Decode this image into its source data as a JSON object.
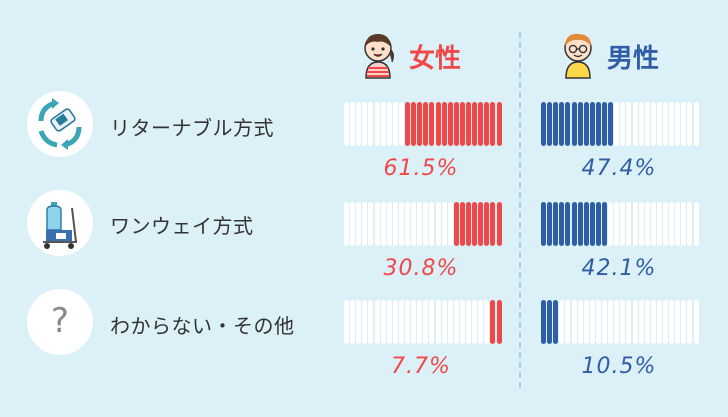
{
  "legend": {
    "female": {
      "label": "女性",
      "color": "#f04848"
    },
    "male": {
      "label": "男性",
      "color": "#2f5ea6"
    }
  },
  "chart_data": {
    "type": "bar",
    "unit": "%",
    "categories": [
      "リターナブル方式",
      "ワンウェイ方式",
      "わからない・その他"
    ],
    "series": [
      {
        "name": "女性",
        "values": [
          61.5,
          30.8,
          7.7
        ],
        "labels": [
          "61.5%",
          "30.8%",
          "7.7%"
        ],
        "color": "#f04848"
      },
      {
        "name": "男性",
        "values": [
          47.4,
          42.1,
          10.5
        ],
        "labels": [
          "47.4%",
          "42.1%",
          "10.5%"
        ],
        "color": "#2f5ea6"
      }
    ],
    "icons": [
      "recycle-bottle-icon",
      "water-jug-cart-icon",
      "question-mark-icon"
    ],
    "question_mark": "?",
    "bar_empty_color": "#ffffff"
  }
}
